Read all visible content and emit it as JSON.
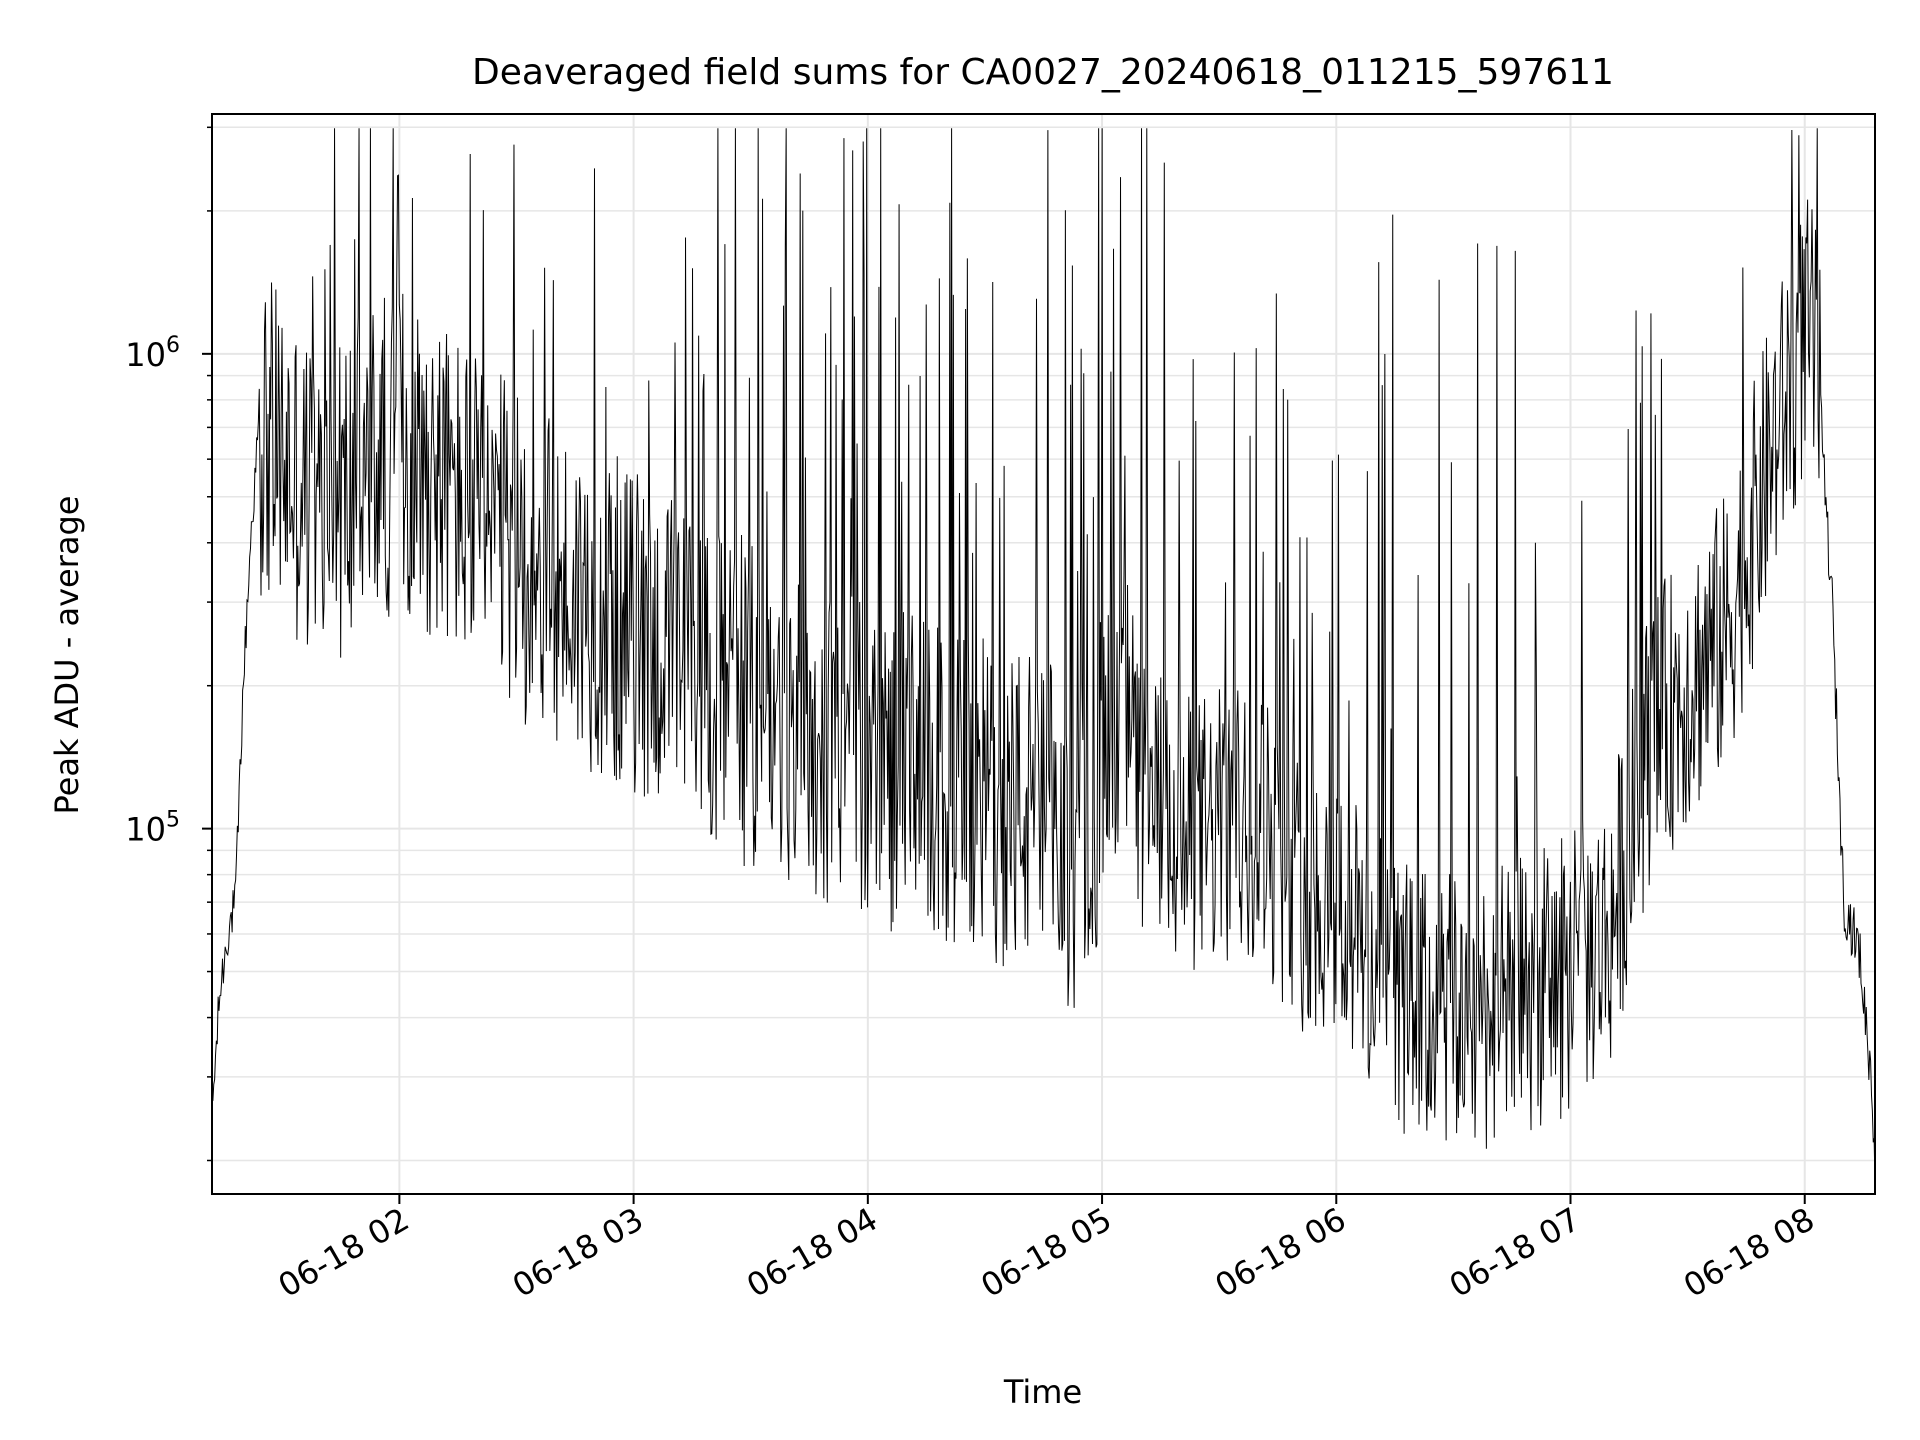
{
  "chart_data": {
    "type": "line",
    "title": "Deaveraged field sums for CA0027_20240618_011215_597611",
    "xlabel": "Time",
    "ylabel": "Peak ADU - average",
    "x_range": [
      "06-18 01:12",
      "06-18 08:18"
    ],
    "y_range": [
      17000,
      3200000
    ],
    "y_scale": "log",
    "x_ticks": [
      {
        "t": "06-18 02:00",
        "label": "06-18 02"
      },
      {
        "t": "06-18 03:00",
        "label": "06-18 03"
      },
      {
        "t": "06-18 04:00",
        "label": "06-18 04"
      },
      {
        "t": "06-18 05:00",
        "label": "06-18 05"
      },
      {
        "t": "06-18 06:00",
        "label": "06-18 06"
      },
      {
        "t": "06-18 07:00",
        "label": "06-18 07"
      },
      {
        "t": "06-18 08:00",
        "label": "06-18 08"
      }
    ],
    "y_ticks": [
      {
        "v": 100000,
        "base": "10",
        "exp": "5"
      },
      {
        "v": 1000000,
        "base": "10",
        "exp": "6"
      }
    ],
    "grid": true,
    "line_color": "#000000",
    "grid_color": "#e6e6e6",
    "series": [
      {
        "points": [
          [
            "06-18 01:12",
            25000
          ],
          [
            "06-18 01:14",
            45000
          ],
          [
            "06-18 01:16",
            60000
          ],
          [
            "06-18 01:18",
            70000
          ],
          [
            "06-18 01:20",
            200000
          ],
          [
            "06-18 01:22",
            420000
          ],
          [
            "06-18 01:24",
            700000
          ],
          [
            "06-18 01:30",
            600000
          ],
          [
            "06-18 01:40",
            450000
          ],
          [
            "06-18 01:50",
            550000
          ],
          [
            "06-18 02:00",
            650000
          ],
          [
            "06-18 02:10",
            550000
          ],
          [
            "06-18 02:20",
            450000
          ],
          [
            "06-18 02:30",
            380000
          ],
          [
            "06-18 02:40",
            320000
          ],
          [
            "06-18 02:50",
            290000
          ],
          [
            "06-18 03:00",
            260000
          ],
          [
            "06-18 03:10",
            230000
          ],
          [
            "06-18 03:20",
            210000
          ],
          [
            "06-18 03:30",
            180000
          ],
          [
            "06-18 03:40",
            160000
          ],
          [
            "06-18 03:50",
            150000
          ],
          [
            "06-18 04:00",
            140000
          ],
          [
            "06-18 04:10",
            130000
          ],
          [
            "06-18 04:20",
            120000
          ],
          [
            "06-18 04:30",
            115000
          ],
          [
            "06-18 04:40",
            110000
          ],
          [
            "06-18 04:48",
            100000
          ],
          [
            "06-18 04:50",
            80000
          ],
          [
            "06-18 05:00",
            130000
          ],
          [
            "06-18 05:05",
            200000
          ],
          [
            "06-18 05:10",
            120000
          ],
          [
            "06-18 05:20",
            95000
          ],
          [
            "06-18 05:30",
            100000
          ],
          [
            "06-18 05:40",
            105000
          ],
          [
            "06-18 05:50",
            75000
          ],
          [
            "06-18 06:00",
            70000
          ],
          [
            "06-18 06:10",
            50000
          ],
          [
            "06-18 06:20",
            42000
          ],
          [
            "06-18 06:30",
            40000
          ],
          [
            "06-18 06:40",
            42000
          ],
          [
            "06-18 06:50",
            45000
          ],
          [
            "06-18 07:00",
            50000
          ],
          [
            "06-18 07:10",
            60000
          ],
          [
            "06-18 07:20",
            150000
          ],
          [
            "06-18 07:30",
            200000
          ],
          [
            "06-18 07:40",
            260000
          ],
          [
            "06-18 07:50",
            550000
          ],
          [
            "06-18 08:00",
            1100000
          ],
          [
            "06-18 08:03",
            1000000
          ],
          [
            "06-18 08:07",
            300000
          ],
          [
            "06-18 08:10",
            70000
          ],
          [
            "06-18 08:14",
            55000
          ],
          [
            "06-18 08:17",
            30000
          ],
          [
            "06-18 08:18",
            20000
          ]
        ]
      }
    ]
  }
}
